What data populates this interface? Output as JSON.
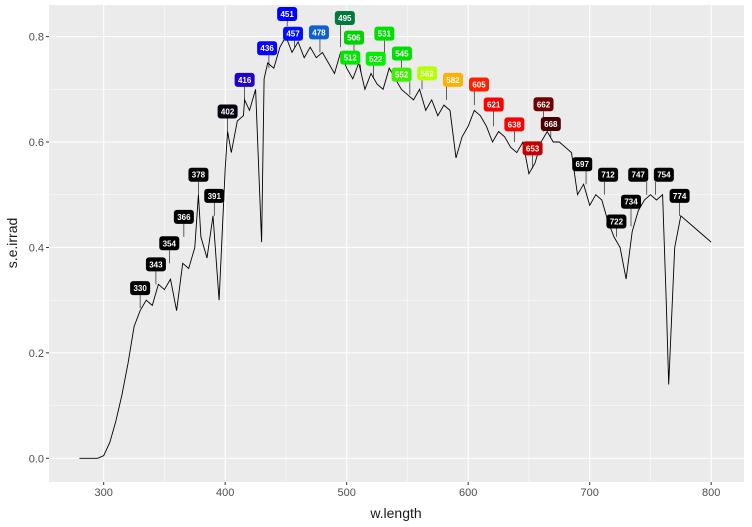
{
  "chart_data": {
    "type": "line",
    "xlabel": "w.length",
    "ylabel": "s.e.irrad",
    "xlim": [
      255,
      827
    ],
    "ylim": [
      -0.045,
      0.86
    ],
    "x_ticks": [
      300,
      400,
      500,
      600,
      700,
      800
    ],
    "y_ticks": [
      0.0,
      0.2,
      0.4,
      0.6,
      0.8
    ],
    "y_tick_labels": [
      "0.0",
      "0.2",
      "0.4",
      "0.6",
      "0.8"
    ],
    "panel_background": "#ebebeb",
    "grid": true,
    "series": [
      {
        "line_color": "#000000",
        "x": [
          280,
          295,
          300,
          305,
          310,
          315,
          320,
          325,
          330,
          335,
          340,
          345,
          350,
          355,
          360,
          365,
          370,
          375,
          378,
          380,
          385,
          390,
          395,
          400,
          402,
          405,
          410,
          415,
          416,
          420,
          425,
          430,
          432,
          435,
          440,
          445,
          450,
          455,
          460,
          465,
          470,
          475,
          480,
          485,
          490,
          495,
          500,
          505,
          510,
          515,
          520,
          525,
          530,
          535,
          540,
          545,
          550,
          555,
          560,
          565,
          570,
          575,
          580,
          585,
          590,
          595,
          600,
          605,
          610,
          615,
          620,
          625,
          630,
          635,
          640,
          645,
          650,
          655,
          660,
          665,
          670,
          675,
          680,
          685,
          690,
          695,
          700,
          705,
          710,
          715,
          720,
          725,
          730,
          735,
          740,
          745,
          750,
          755,
          760,
          763,
          765,
          770,
          775,
          780,
          785,
          790,
          795,
          800
        ],
        "y": [
          0.0,
          0.0,
          0.005,
          0.03,
          0.07,
          0.12,
          0.18,
          0.25,
          0.28,
          0.3,
          0.29,
          0.33,
          0.32,
          0.34,
          0.28,
          0.37,
          0.36,
          0.4,
          0.5,
          0.42,
          0.38,
          0.46,
          0.3,
          0.55,
          0.62,
          0.58,
          0.64,
          0.65,
          0.68,
          0.66,
          0.7,
          0.41,
          0.72,
          0.75,
          0.74,
          0.78,
          0.8,
          0.77,
          0.79,
          0.76,
          0.78,
          0.76,
          0.77,
          0.75,
          0.73,
          0.77,
          0.74,
          0.72,
          0.75,
          0.7,
          0.73,
          0.71,
          0.7,
          0.74,
          0.72,
          0.7,
          0.69,
          0.68,
          0.7,
          0.66,
          0.68,
          0.65,
          0.67,
          0.66,
          0.57,
          0.61,
          0.63,
          0.66,
          0.65,
          0.63,
          0.6,
          0.62,
          0.61,
          0.59,
          0.58,
          0.6,
          0.54,
          0.56,
          0.6,
          0.62,
          0.6,
          0.6,
          0.59,
          0.58,
          0.5,
          0.52,
          0.48,
          0.5,
          0.49,
          0.45,
          0.42,
          0.4,
          0.34,
          0.43,
          0.47,
          0.49,
          0.5,
          0.49,
          0.5,
          0.3,
          0.14,
          0.4,
          0.46,
          0.45,
          0.44,
          0.43,
          0.42,
          0.41
        ]
      }
    ],
    "peaks": [
      {
        "label": "330",
        "x": 330,
        "y": 0.285,
        "fill": "#000000",
        "text": "#ffffff"
      },
      {
        "label": "343",
        "x": 343,
        "y": 0.33,
        "fill": "#000000",
        "text": "#ffffff"
      },
      {
        "label": "354",
        "x": 354,
        "y": 0.37,
        "fill": "#000000",
        "text": "#ffffff"
      },
      {
        "label": "366",
        "x": 366,
        "y": 0.42,
        "fill": "#000000",
        "text": "#ffffff"
      },
      {
        "label": "378",
        "x": 378,
        "y": 0.5,
        "fill": "#000000",
        "text": "#ffffff"
      },
      {
        "label": "391",
        "x": 391,
        "y": 0.46,
        "fill": "#000000",
        "text": "#ffffff"
      },
      {
        "label": "402",
        "x": 402,
        "y": 0.62,
        "fill": "#06000f",
        "text": "#ffffff"
      },
      {
        "label": "416",
        "x": 416,
        "y": 0.68,
        "fill": "#2200cc",
        "text": "#ffffff"
      },
      {
        "label": "436",
        "x": 436,
        "y": 0.74,
        "fill": "#0a00ff",
        "text": "#ffffff"
      },
      {
        "label": "451",
        "x": 451,
        "y": 0.82,
        "fill": "#0000ff",
        "text": "#ffffff"
      },
      {
        "label": "457",
        "x": 457,
        "y": 0.78,
        "fill": "#0010ff",
        "text": "#ffffff"
      },
      {
        "label": "478",
        "x": 478,
        "y": 0.77,
        "fill": "#0f5fcf",
        "text": "#ffffff"
      },
      {
        "label": "495",
        "x": 495,
        "y": 0.78,
        "fill": "#007a3d",
        "text": "#ffffff"
      },
      {
        "label": "506",
        "x": 506,
        "y": 0.77,
        "fill": "#00d400",
        "text": "#ffffff"
      },
      {
        "label": "512",
        "x": 512,
        "y": 0.73,
        "fill": "#00e600",
        "text": "#ffffff"
      },
      {
        "label": "522",
        "x": 522,
        "y": 0.72,
        "fill": "#00f000",
        "text": "#ffffff"
      },
      {
        "label": "531",
        "x": 531,
        "y": 0.76,
        "fill": "#00e000",
        "text": "#ffffff"
      },
      {
        "label": "545",
        "x": 545,
        "y": 0.73,
        "fill": "#00e000",
        "text": "#ffffff"
      },
      {
        "label": "552",
        "x": 552,
        "y": 0.69,
        "fill": "#3cf000",
        "text": "#ffffff"
      },
      {
        "label": "562",
        "x": 562,
        "y": 0.7,
        "fill": "#b4ff00",
        "text": "#ffffff"
      },
      {
        "label": "582",
        "x": 582,
        "y": 0.68,
        "fill": "#ffb000",
        "text": "#ffffff"
      },
      {
        "label": "605",
        "x": 605,
        "y": 0.67,
        "fill": "#ff2000",
        "text": "#ffffff"
      },
      {
        "label": "621",
        "x": 621,
        "y": 0.63,
        "fill": "#ff0000",
        "text": "#ffffff"
      },
      {
        "label": "638",
        "x": 638,
        "y": 0.6,
        "fill": "#ff0000",
        "text": "#ffffff"
      },
      {
        "label": "653",
        "x": 653,
        "y": 0.55,
        "fill": "#c40000",
        "text": "#ffffff"
      },
      {
        "label": "662",
        "x": 662,
        "y": 0.62,
        "fill": "#700000",
        "text": "#ffffff"
      },
      {
        "label": "668",
        "x": 668,
        "y": 0.61,
        "fill": "#4a0000",
        "text": "#ffffff"
      },
      {
        "label": "697",
        "x": 697,
        "y": 0.52,
        "fill": "#000000",
        "text": "#ffffff"
      },
      {
        "label": "712",
        "x": 712,
        "y": 0.5,
        "fill": "#000000",
        "text": "#ffffff"
      },
      {
        "label": "722",
        "x": 722,
        "y": 0.42,
        "fill": "#000000",
        "text": "#ffffff"
      },
      {
        "label": "734",
        "x": 734,
        "y": 0.44,
        "fill": "#000000",
        "text": "#ffffff"
      },
      {
        "label": "747",
        "x": 747,
        "y": 0.5,
        "fill": "#000000",
        "text": "#ffffff"
      },
      {
        "label": "754",
        "x": 754,
        "y": 0.5,
        "fill": "#000000",
        "text": "#ffffff"
      },
      {
        "label": "774",
        "x": 774,
        "y": 0.46,
        "fill": "#000000",
        "text": "#ffffff"
      }
    ]
  }
}
